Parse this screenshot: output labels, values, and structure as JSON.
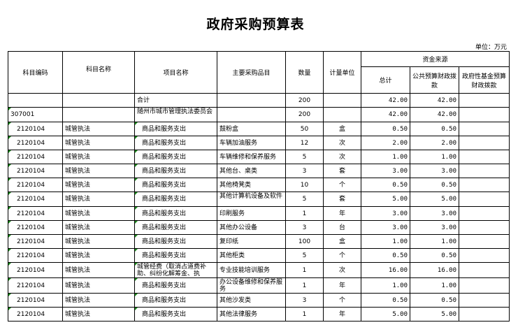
{
  "title": "政府采购预算表",
  "unit": "单位：万元",
  "headers": {
    "code": "科目编码",
    "subject": "科目名称",
    "project": "项目名称",
    "item": "主要采购品目",
    "qty": "数量",
    "measure": "计量单位",
    "funding": "资金来源",
    "total": "总计",
    "public": "公共预算财政拨款",
    "gov_fund": "政府性基金预算财政拨款"
  },
  "rows": [
    {
      "code": "",
      "subject": "",
      "project": "合计",
      "item": "",
      "qty": "200",
      "measure": "",
      "total": "42.00",
      "public": "42.00",
      "gov_fund": ""
    },
    {
      "code": "307001",
      "subject": "",
      "project": "随州市城市管理执法委员会",
      "item": "",
      "qty": "200",
      "measure": "",
      "total": "42.00",
      "public": "42.00",
      "gov_fund": ""
    },
    {
      "code": "2120104",
      "subject": "城管执法",
      "project": "商品和服务支出",
      "item": "鼓粉盒",
      "qty": "50",
      "measure": "盒",
      "total": "0.50",
      "public": "0.50",
      "gov_fund": ""
    },
    {
      "code": "2120104",
      "subject": "城管执法",
      "project": "商品和服务支出",
      "item": "车辆加油服务",
      "qty": "12",
      "measure": "次",
      "total": "2.00",
      "public": "2.00",
      "gov_fund": ""
    },
    {
      "code": "2120104",
      "subject": "城管执法",
      "project": "商品和服务支出",
      "item": "车辆维修和保养服务",
      "qty": "5",
      "measure": "次",
      "total": "1.00",
      "public": "1.00",
      "gov_fund": ""
    },
    {
      "code": "2120104",
      "subject": "城管执法",
      "project": "商品和服务支出",
      "item": "其他台、桌类",
      "qty": "3",
      "measure": "套",
      "total": "3.00",
      "public": "3.00",
      "gov_fund": ""
    },
    {
      "code": "2120104",
      "subject": "城管执法",
      "project": "商品和服务支出",
      "item": "其他椅凳类",
      "qty": "10",
      "measure": "个",
      "total": "0.50",
      "public": "0.50",
      "gov_fund": ""
    },
    {
      "code": "2120104",
      "subject": "城管执法",
      "project": "商品和服务支出",
      "item": "其他计算机设备及软件",
      "qty": "5",
      "measure": "套",
      "total": "5.00",
      "public": "5.00",
      "gov_fund": ""
    },
    {
      "code": "2120104",
      "subject": "城管执法",
      "project": "商品和服务支出",
      "item": "印刷服务",
      "qty": "1",
      "measure": "年",
      "total": "3.00",
      "public": "3.00",
      "gov_fund": ""
    },
    {
      "code": "2120104",
      "subject": "城管执法",
      "project": "商品和服务支出",
      "item": "其他办公设备",
      "qty": "3",
      "measure": "台",
      "total": "3.00",
      "public": "3.00",
      "gov_fund": ""
    },
    {
      "code": "2120104",
      "subject": "城管执法",
      "project": "商品和服务支出",
      "item": "复印纸",
      "qty": "100",
      "measure": "盒",
      "total": "1.00",
      "public": "1.00",
      "gov_fund": ""
    },
    {
      "code": "2120104",
      "subject": "城管执法",
      "project": "商品和服务支出",
      "item": "其他柜类",
      "qty": "5",
      "measure": "个",
      "total": "0.50",
      "public": "0.50",
      "gov_fund": ""
    },
    {
      "code": "2120104",
      "subject": "城管执法",
      "project": "城管经费（取消占道费补助、纠纷化解筹金、执",
      "item": "专业技能培训服务",
      "qty": "1",
      "measure": "次",
      "total": "16.00",
      "public": "16.00",
      "gov_fund": ""
    },
    {
      "code": "2120104",
      "subject": "城管执法",
      "project": "商品和服务支出",
      "item": "办公设备维修和保养服务",
      "qty": "1",
      "measure": "年",
      "total": "1.00",
      "public": "1.00",
      "gov_fund": ""
    },
    {
      "code": "2120104",
      "subject": "城管执法",
      "project": "商品和服务支出",
      "item": "其他沙发类",
      "qty": "3",
      "measure": "个",
      "total": "0.50",
      "public": "0.50",
      "gov_fund": ""
    },
    {
      "code": "2120104",
      "subject": "城管执法",
      "project": "商品和服务支出",
      "item": "其他法律服务",
      "qty": "1",
      "measure": "年",
      "total": "5.00",
      "public": "5.00",
      "gov_fund": ""
    }
  ]
}
